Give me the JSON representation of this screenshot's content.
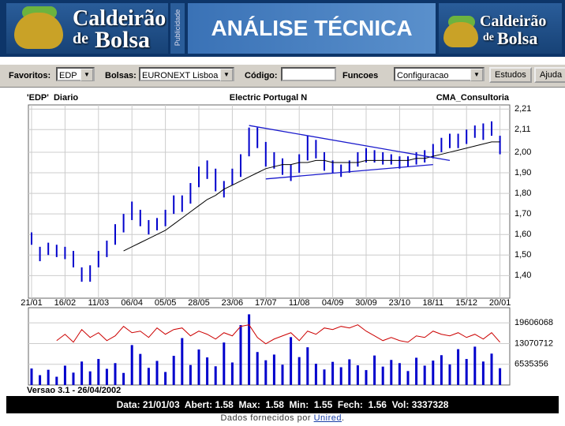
{
  "header": {
    "logo_top": "Caldeirão",
    "logo_de": "de",
    "logo_bolsa": "Bolsa",
    "ad_label": "Publicidade",
    "title": "ANÁLISE TÉCNICA"
  },
  "toolbar": {
    "favoritos_label": "Favoritos:",
    "favoritos_value": "EDP",
    "bolsas_label": "Bolsas:",
    "bolsas_value": "EURONEXT Lisboa",
    "codigo_label": "Código:",
    "funcoes_label": "Funcoes",
    "funcoes_value": "Configuracao",
    "button_estudos": "Estudos",
    "button_ajuda": "Ajuda"
  },
  "chart_data": [
    {
      "type": "hilo",
      "title": "Electric Portugal N",
      "symbol_label": "'EDP'  Diario",
      "source": "CMA_Consultoria",
      "color": "#0000cc",
      "categories": [
        "21/01",
        null,
        null,
        null,
        "16/02",
        null,
        null,
        null,
        "11/03",
        null,
        null,
        null,
        "06/04",
        null,
        null,
        null,
        "05/05",
        null,
        null,
        null,
        "28/05",
        null,
        null,
        null,
        "23/06",
        null,
        null,
        null,
        "17/07",
        null,
        null,
        null,
        "11/08",
        null,
        null,
        null,
        "04/09",
        null,
        null,
        null,
        "30/09",
        null,
        null,
        null,
        "23/10",
        null,
        null,
        null,
        "18/11",
        null,
        null,
        null,
        "15/12",
        null,
        null,
        null,
        "20/01"
      ],
      "high": [
        1.61,
        1.54,
        1.56,
        1.55,
        1.54,
        1.52,
        1.44,
        1.45,
        1.52,
        1.57,
        1.65,
        1.7,
        1.76,
        1.72,
        1.67,
        1.68,
        1.72,
        1.79,
        1.79,
        1.85,
        1.93,
        1.96,
        1.92,
        1.86,
        1.92,
        1.99,
        2.12,
        2.12,
        2.05,
        2.0,
        1.97,
        1.94,
        1.99,
        2.08,
        2.06,
        2.0,
        1.96,
        1.94,
        1.96,
        2.0,
        2.02,
        2.01,
        2.0,
        1.99,
        1.98,
        1.98,
        2.0,
        2.01,
        2.04,
        2.07,
        2.09,
        2.09,
        2.11,
        2.13,
        2.14,
        2.15,
        2.08
      ],
      "low": [
        1.55,
        1.47,
        1.5,
        1.49,
        1.48,
        1.44,
        1.37,
        1.37,
        1.44,
        1.49,
        1.55,
        1.61,
        1.67,
        1.64,
        1.6,
        1.62,
        1.64,
        1.7,
        1.71,
        1.75,
        1.83,
        1.87,
        1.81,
        1.78,
        1.84,
        1.88,
        1.98,
        2.02,
        1.93,
        1.92,
        1.89,
        1.86,
        1.9,
        1.96,
        1.97,
        1.91,
        1.9,
        1.88,
        1.9,
        1.93,
        1.95,
        1.95,
        1.94,
        1.94,
        1.92,
        1.93,
        1.94,
        1.95,
        1.97,
        2.0,
        2.02,
        2.02,
        2.04,
        2.07,
        2.06,
        2.08,
        1.99
      ],
      "moving_average": {
        "color": "#000000",
        "values": [
          null,
          null,
          null,
          null,
          null,
          null,
          null,
          null,
          null,
          null,
          null,
          1.52,
          1.54,
          1.56,
          1.58,
          1.6,
          1.62,
          1.65,
          1.68,
          1.71,
          1.74,
          1.77,
          1.79,
          1.82,
          1.84,
          1.86,
          1.88,
          1.9,
          1.92,
          1.93,
          1.94,
          1.94,
          1.95,
          1.95,
          1.96,
          1.96,
          1.95,
          1.95,
          1.95,
          1.95,
          1.96,
          1.96,
          1.96,
          1.96,
          1.96,
          1.96,
          1.97,
          1.97,
          1.98,
          1.99,
          2.0,
          2.01,
          2.02,
          2.03,
          2.04,
          2.05,
          2.05
        ]
      },
      "trendlines": [
        {
          "x": [
            26,
            50
          ],
          "y": [
            2.13,
            1.96
          ]
        },
        {
          "x": [
            28,
            48
          ],
          "y": [
            1.87,
            1.94
          ]
        }
      ],
      "trendline_color": "#1a1acc",
      "ylim": [
        1.29,
        2.23
      ],
      "yticks": [
        {
          "value": 1.4,
          "label": "1,40"
        },
        {
          "value": 1.5,
          "label": "1,50"
        },
        {
          "value": 1.6,
          "label": "1,60"
        },
        {
          "value": 1.7,
          "label": "1,70"
        },
        {
          "value": 1.8,
          "label": "1,80"
        },
        {
          "value": 1.9,
          "label": "1,90"
        },
        {
          "value": 2.0,
          "label": "2,00"
        },
        {
          "value": 2.11,
          "label": "2,11"
        },
        {
          "value": 2.21,
          "label": "2,21"
        }
      ],
      "grid": true
    },
    {
      "type": "bar",
      "color": "#0000cc",
      "values": [
        5200000,
        3100000,
        4800000,
        2600000,
        6100000,
        3900000,
        7400000,
        4300000,
        8200000,
        5100000,
        6900000,
        3800000,
        12600000,
        9800000,
        5400000,
        7600000,
        4100000,
        9200000,
        14800000,
        6300000,
        11200000,
        8700000,
        5900000,
        13400000,
        7100000,
        18900000,
        22300000,
        10400000,
        7800000,
        9600000,
        6400000,
        15100000,
        8800000,
        11900000,
        6700000,
        4900000,
        7300000,
        5600000,
        8100000,
        6200000,
        4700000,
        9300000,
        5800000,
        7900000,
        6900000,
        4400000,
        8600000,
        6100000,
        7700000,
        9400000,
        6500000,
        11300000,
        8200000,
        12100000,
        7400000,
        9900000,
        5300000
      ],
      "line": {
        "color": "#cc0000",
        "values": [
          null,
          null,
          null,
          14000000,
          16000000,
          13500000,
          17500000,
          15000000,
          16500000,
          14000000,
          15500000,
          18500000,
          16500000,
          17000000,
          15000000,
          18000000,
          16000000,
          17500000,
          18000000,
          15500000,
          17000000,
          16000000,
          14500000,
          16500000,
          15500000,
          18500000,
          19000000,
          15000000,
          13000000,
          14500000,
          15500000,
          16500000,
          14000000,
          17000000,
          16000000,
          18000000,
          17500000,
          18500000,
          18000000,
          19000000,
          17000000,
          15500000,
          14000000,
          15000000,
          14000000,
          13500000,
          15500000,
          15000000,
          17000000,
          16000000,
          15500000,
          16500000,
          15000000,
          16000000,
          14500000,
          16500000,
          13500000
        ]
      },
      "ylim": [
        0,
        24400000
      ],
      "yticks": [
        6535356,
        13070712,
        19606068
      ],
      "grid": true
    }
  ],
  "version": "Versao 3.1 - 26/04/2002",
  "status": "Data: 21/01/03  Abert: 1.58  Max:  1.58  Min:  1.55  Fech:  1.56  Vol: 3337328",
  "footer": {
    "text": "Dados fornecidos por",
    "link": "Unired",
    "end": "."
  }
}
